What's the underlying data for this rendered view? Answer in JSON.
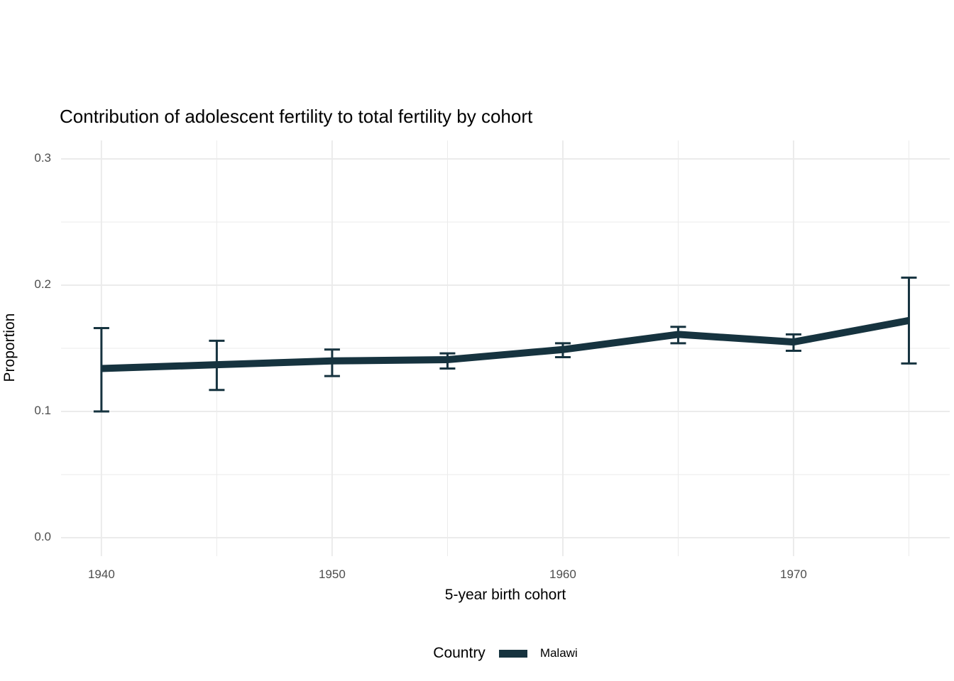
{
  "page": {
    "background": "#ffffff"
  },
  "chart_data": {
    "type": "line",
    "title": "Contribution of adolescent fertility to total fertility by cohort",
    "xlabel": "5-year birth cohort",
    "ylabel": "Proportion",
    "legend": {
      "title": "Country",
      "position": "bottom",
      "entries": [
        {
          "label": "Malawi",
          "color": "#16333f"
        }
      ]
    },
    "x": [
      1940,
      1945,
      1950,
      1955,
      1960,
      1965,
      1970,
      1975
    ],
    "series": [
      {
        "name": "Malawi",
        "color": "#16333f",
        "values": [
          0.134,
          0.137,
          0.14,
          0.141,
          0.149,
          0.161,
          0.155,
          0.172
        ],
        "ci_lower": [
          0.1,
          0.117,
          0.128,
          0.134,
          0.143,
          0.154,
          0.148,
          0.138
        ],
        "ci_upper": [
          0.166,
          0.156,
          0.149,
          0.146,
          0.154,
          0.167,
          0.161,
          0.206
        ]
      }
    ],
    "xlim": [
      1938.25,
      1976.77
    ],
    "ylim": [
      -0.0146,
      0.3146
    ],
    "x_major_ticks": [
      1940,
      1950,
      1960,
      1970
    ],
    "x_tick_labels": [
      "1940",
      "1950",
      "1960",
      "1970"
    ],
    "x_minor_ticks": [
      1945,
      1955,
      1965,
      1975
    ],
    "y_major_ticks": [
      0.0,
      0.1,
      0.2,
      0.3
    ],
    "y_tick_labels": [
      "0.0",
      "0.1",
      "0.2",
      "0.3"
    ],
    "y_minor_ticks": [
      0.05,
      0.15,
      0.25
    ],
    "grid": true,
    "style": {
      "grid_color": "#ebebeb",
      "axis_text_color": "#4d4d4d",
      "title_color": "#000000",
      "line_width": 10,
      "errorbar_width": 3,
      "errorbar_cap_halfwidth": 11
    }
  }
}
